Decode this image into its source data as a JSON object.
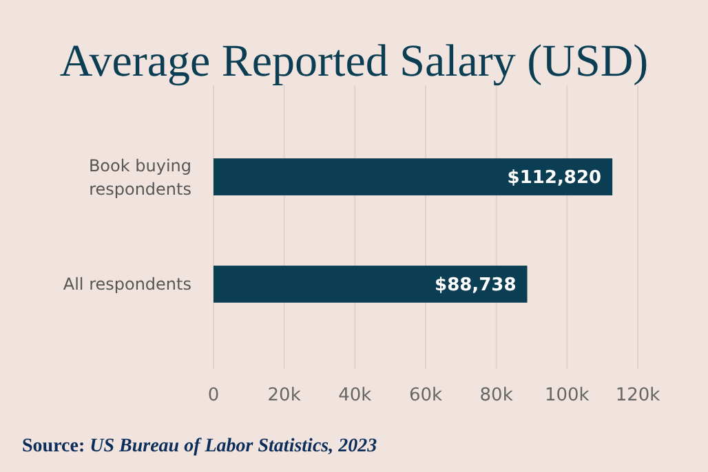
{
  "chart_data": {
    "type": "bar",
    "orientation": "horizontal",
    "title": "Average Reported Salary (USD)",
    "categories": [
      "Book buying respondents",
      "All respondents"
    ],
    "values": [
      112820,
      88738
    ],
    "value_labels": [
      "$112,820",
      "$88,738"
    ],
    "color": "#0b3d53",
    "xlim": [
      0,
      120000
    ],
    "xticks": [
      {
        "value": 0,
        "label": "0"
      },
      {
        "value": 20000,
        "label": "20k"
      },
      {
        "value": 40000,
        "label": "40k"
      },
      {
        "value": 60000,
        "label": "60k"
      },
      {
        "value": 80000,
        "label": "80k"
      },
      {
        "value": 100000,
        "label": "100k"
      },
      {
        "value": 120000,
        "label": "120k"
      }
    ],
    "grid": "x",
    "annotations": [
      "Source: US Bureau of Labor Statistics, 2023"
    ]
  }
}
